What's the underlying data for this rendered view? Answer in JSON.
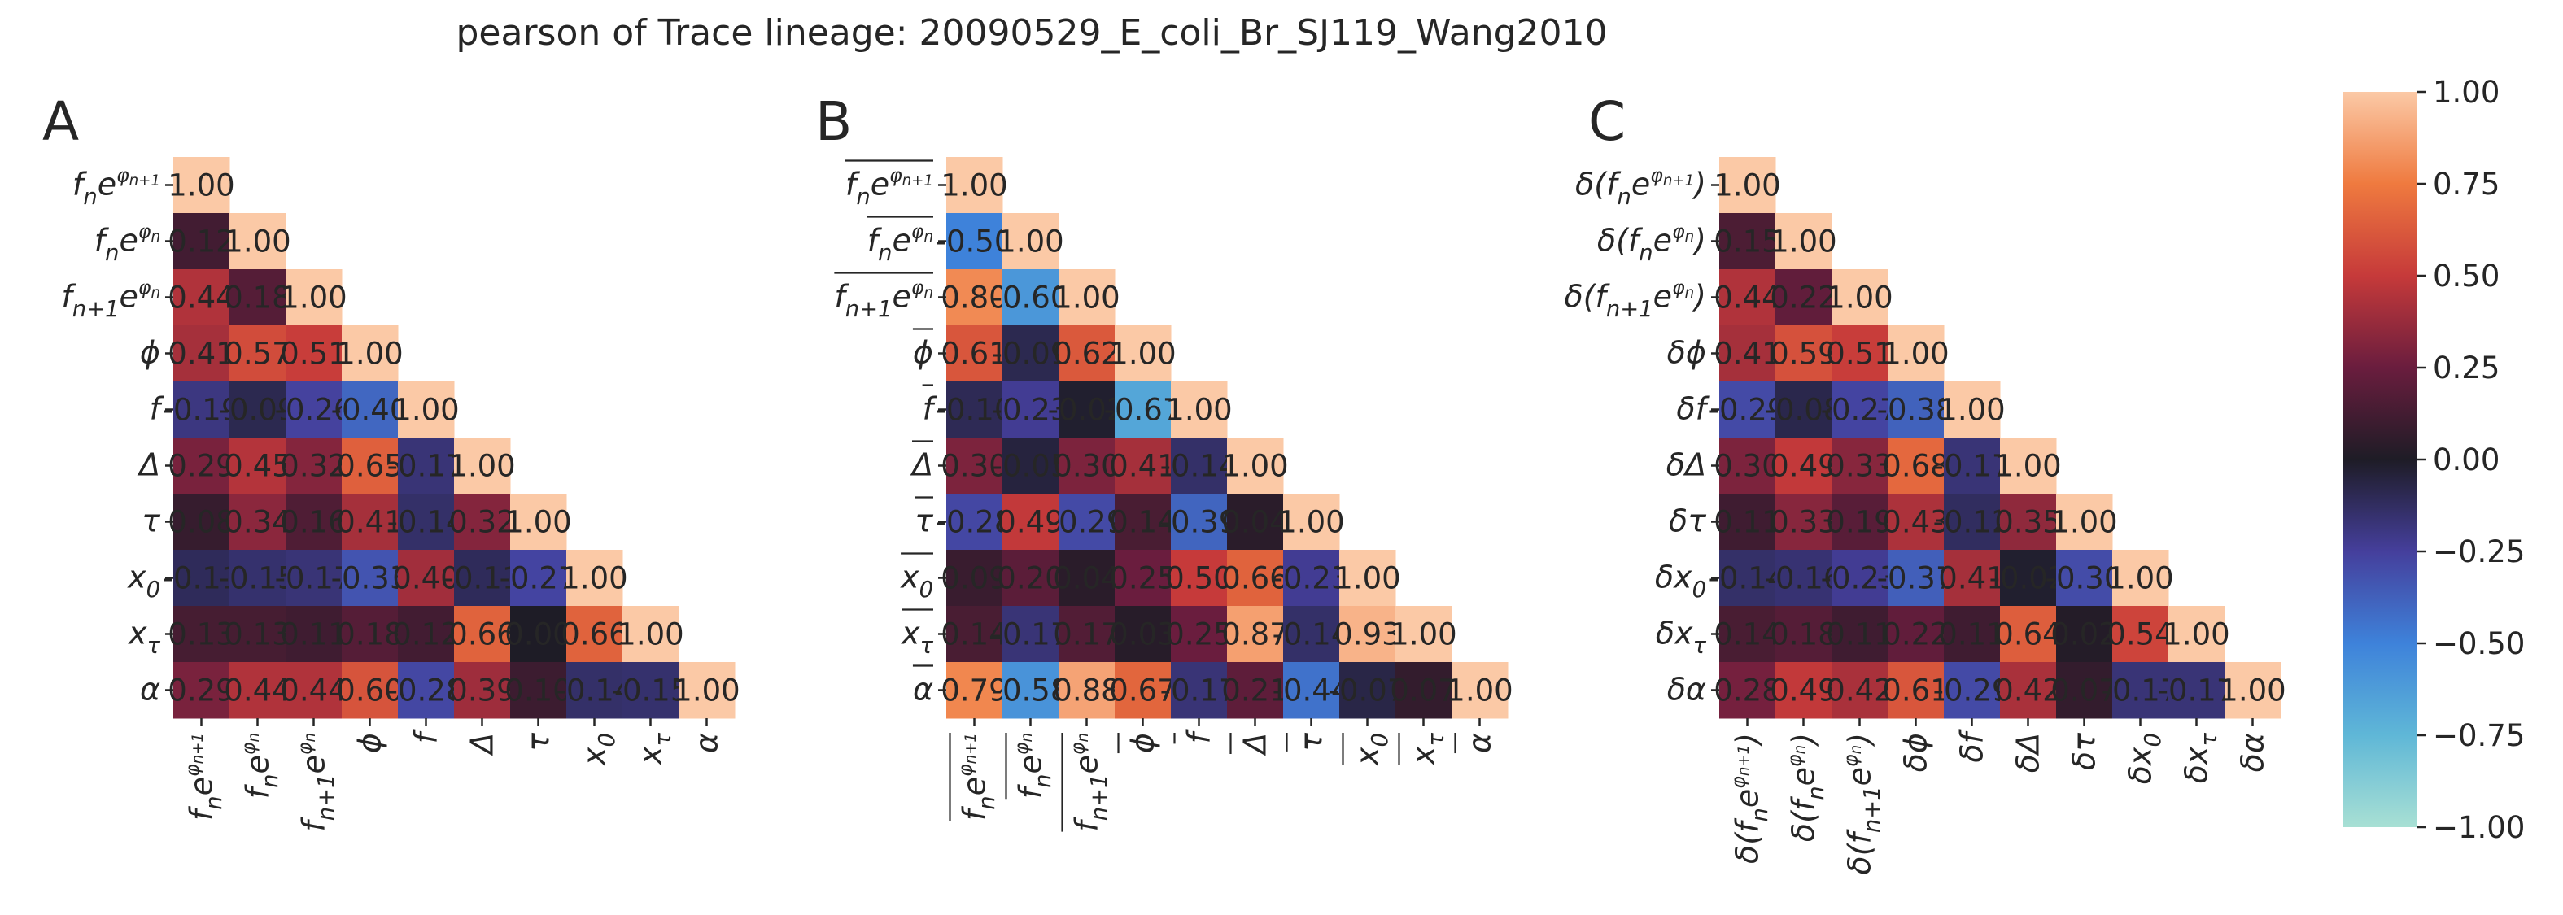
{
  "title": "pearson of Trace lineage: 20090529_E_coli_Br_SJ119_Wang2010",
  "colorbar": {
    "vmin": -1.0,
    "vmax": 1.0,
    "ticks": [
      "1.00",
      "0.75",
      "0.50",
      "0.25",
      "0.00",
      "−0.25",
      "−0.50",
      "−0.75",
      "−1.00"
    ],
    "colormap": "icefire",
    "colors": [
      "#a8e0d4",
      "#5fb7d7",
      "#3e82da",
      "#453f9c",
      "#1e1c26",
      "#6a1d3e",
      "#c63a3a",
      "#ef7a3f",
      "#fbc9a6"
    ]
  },
  "chart_data": [
    {
      "type": "heatmap",
      "panel_label": "A",
      "layout": "lower-triangle",
      "labels": [
        "fₙe^{φₙ₊₁}",
        "fₙe^{φₙ}",
        "fₙ₊₁e^{φₙ}",
        "ϕ",
        "f",
        "Δ",
        "τ",
        "x₀",
        "x_τ",
        "α"
      ],
      "values": [
        [
          1.0
        ],
        [
          0.12,
          1.0
        ],
        [
          0.44,
          0.18,
          1.0
        ],
        [
          0.41,
          0.57,
          0.51,
          1.0
        ],
        [
          -0.19,
          -0.09,
          -0.26,
          -0.4,
          1.0
        ],
        [
          0.29,
          0.45,
          0.32,
          0.65,
          -0.17,
          1.0
        ],
        [
          0.08,
          0.34,
          0.16,
          0.41,
          -0.14,
          0.32,
          1.0
        ],
        [
          -0.11,
          -0.15,
          -0.17,
          -0.33,
          0.4,
          -0.11,
          -0.27,
          1.0
        ],
        [
          0.13,
          0.13,
          0.11,
          0.18,
          0.12,
          0.66,
          0.0,
          0.66,
          1.0
        ],
        [
          0.29,
          0.44,
          0.44,
          0.6,
          -0.28,
          0.39,
          0.1,
          -0.14,
          -0.15,
          1.0
        ]
      ],
      "value_labels": [
        [
          "1.00"
        ],
        [
          "0.12",
          "1.00"
        ],
        [
          "0.44",
          "0.18",
          "1.00"
        ],
        [
          "0.41",
          "0.57",
          "0.51",
          "1.00"
        ],
        [
          "-0.19",
          "-0.09",
          "-0.26",
          "-0.40",
          "1.00"
        ],
        [
          "0.29",
          "0.45",
          "0.32",
          "0.65",
          "-0.17",
          "1.00"
        ],
        [
          "0.08",
          "0.34",
          "0.16",
          "0.41",
          "-0.14",
          "0.32",
          "1.00"
        ],
        [
          "-0.11",
          "-0.15",
          "-0.17",
          "-0.33",
          "0.40",
          "-0.11",
          "-0.27",
          "1.00"
        ],
        [
          "0.13",
          "0.13",
          "0.11",
          "0.18",
          "0.12",
          "0.66",
          "0.00",
          "0.66",
          "1.00"
        ],
        [
          "0.29",
          "0.44",
          "0.44",
          "0.60",
          "-0.28",
          "0.39",
          "0.10",
          "-0.14",
          "-0.15",
          "1.00"
        ]
      ]
    },
    {
      "type": "heatmap",
      "panel_label": "B",
      "layout": "lower-triangle",
      "overline": true,
      "labels": [
        "fₙe^{φₙ₊₁}",
        "fₙe^{φₙ}",
        "fₙ₊₁e^{φₙ}",
        "ϕ",
        "f",
        "Δ",
        "τ",
        "x₀",
        "x_τ",
        "α"
      ],
      "values": [
        [
          1.0
        ],
        [
          -0.5,
          1.0
        ],
        [
          0.8,
          -0.6,
          1.0
        ],
        [
          0.61,
          -0.09,
          0.62,
          1.0
        ],
        [
          -0.1,
          -0.23,
          -0.02,
          -0.67,
          1.0
        ],
        [
          0.3,
          -0.05,
          0.3,
          0.41,
          -0.14,
          1.0
        ],
        [
          -0.28,
          0.49,
          -0.29,
          0.14,
          -0.39,
          0.04,
          1.0
        ],
        [
          0.09,
          0.2,
          0.04,
          0.25,
          0.5,
          0.66,
          -0.23,
          1.0
        ],
        [
          0.14,
          -0.17,
          0.17,
          0.03,
          0.25,
          0.87,
          -0.14,
          0.93,
          1.0
        ],
        [
          0.79,
          -0.58,
          0.88,
          0.67,
          -0.17,
          0.21,
          -0.44,
          -0.07,
          0.07,
          1.0
        ]
      ],
      "value_labels": [
        [
          "1.00"
        ],
        [
          "-0.50",
          "1.00"
        ],
        [
          "0.80",
          "-0.60",
          "1.00"
        ],
        [
          "0.61",
          "-0.09",
          "0.62",
          "1.00"
        ],
        [
          "-0.10",
          "-0.23",
          "-0.02",
          "-0.67",
          "1.00"
        ],
        [
          "0.30",
          "-0.05",
          "0.30",
          "0.41",
          "-0.14",
          "1.00"
        ],
        [
          "-0.28",
          "0.49",
          "-0.29",
          "0.14",
          "-0.39",
          "0.04",
          "1.00"
        ],
        [
          "0.09",
          "0.20",
          "0.04",
          "0.25",
          "0.50",
          "0.66",
          "-0.23",
          "1.00"
        ],
        [
          "0.14",
          "-0.17",
          "0.17",
          "0.03",
          "0.25",
          "0.87",
          "-0.14",
          "0.93",
          "1.00"
        ],
        [
          "0.79",
          "-0.58",
          "0.88",
          "0.67",
          "-0.17",
          "0.21",
          "-0.44",
          "-0.07",
          "0.07",
          "1.00"
        ]
      ]
    },
    {
      "type": "heatmap",
      "panel_label": "C",
      "layout": "lower-triangle",
      "labels": [
        "δ(fₙe^{φₙ₊₁})",
        "δ(fₙe^{φₙ})",
        "δ(fₙ₊₁e^{φₙ})",
        "δϕ",
        "δf",
        "δΔ",
        "δτ",
        "δx₀",
        "δx_τ",
        "δα"
      ],
      "values": [
        [
          1.0
        ],
        [
          0.15,
          1.0
        ],
        [
          0.44,
          0.22,
          1.0
        ],
        [
          0.41,
          0.59,
          0.51,
          1.0
        ],
        [
          -0.29,
          -0.08,
          -0.27,
          -0.38,
          1.0
        ],
        [
          0.3,
          0.49,
          0.33,
          0.68,
          -0.17,
          1.0
        ],
        [
          0.11,
          0.33,
          0.19,
          0.43,
          -0.12,
          0.35,
          1.0
        ],
        [
          -0.14,
          -0.16,
          -0.23,
          -0.37,
          0.41,
          -0.02,
          -0.3,
          1.0
        ],
        [
          0.14,
          0.18,
          0.11,
          0.22,
          0.11,
          0.64,
          0.02,
          0.54,
          1.0
        ],
        [
          0.28,
          0.49,
          0.42,
          0.61,
          -0.29,
          0.42,
          0.07,
          -0.17,
          -0.17,
          1.0
        ]
      ],
      "value_labels": [
        [
          "1.00"
        ],
        [
          "0.15",
          "1.00"
        ],
        [
          "0.44",
          "0.22",
          "1.00"
        ],
        [
          "0.41",
          "0.59",
          "0.51",
          "1.00"
        ],
        [
          "-0.29",
          "-0.08",
          "-0.27",
          "-0.38",
          "1.00"
        ],
        [
          "0.30",
          "0.49",
          "0.33",
          "0.68",
          "-0.17",
          "1.00"
        ],
        [
          "0.11",
          "0.33",
          "0.19",
          "0.43",
          "-0.12",
          "0.35",
          "1.00"
        ],
        [
          "-0.14",
          "-0.16",
          "-0.23",
          "-0.37",
          "0.41",
          "-0.02",
          "-0.30",
          "1.00"
        ],
        [
          "0.14",
          "0.18",
          "0.11",
          "0.22",
          "0.11",
          "0.64",
          "0.02",
          "0.54",
          "1.00"
        ],
        [
          "0.28",
          "0.49",
          "0.42",
          "0.61",
          "-0.29",
          "0.42",
          "0.07",
          "-0.17",
          "-0.17",
          "1.00"
        ]
      ]
    }
  ]
}
